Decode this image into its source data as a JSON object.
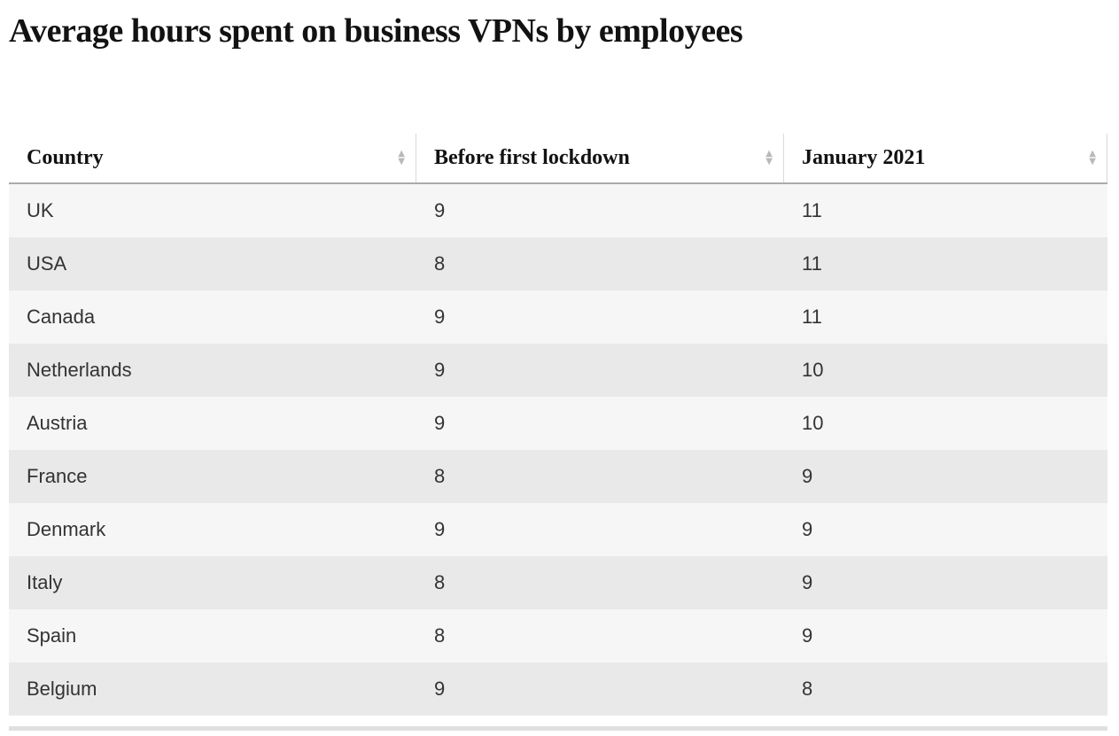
{
  "page": {
    "title": "Average hours spent on business VPNs by employees"
  },
  "table": {
    "columns": [
      {
        "label": "Country",
        "sortable": true
      },
      {
        "label": "Before first lockdown",
        "sortable": true
      },
      {
        "label": "January 2021",
        "sortable": true
      }
    ],
    "rows": [
      {
        "country": "UK",
        "before": "9",
        "january": "11"
      },
      {
        "country": "USA",
        "before": "8",
        "january": "11"
      },
      {
        "country": "Canada",
        "before": "9",
        "january": "11"
      },
      {
        "country": "Netherlands",
        "before": "9",
        "january": "10"
      },
      {
        "country": "Austria",
        "before": "9",
        "january": "10"
      },
      {
        "country": "France",
        "before": "8",
        "january": "9"
      },
      {
        "country": "Denmark",
        "before": "9",
        "january": "9"
      },
      {
        "country": "Italy",
        "before": "8",
        "january": "9"
      },
      {
        "country": "Spain",
        "before": "8",
        "january": "9"
      },
      {
        "country": "Belgium",
        "before": "9",
        "january": "8"
      }
    ]
  },
  "icons": {
    "sort_up": "▲",
    "sort_down": "▼"
  },
  "colors": {
    "title_text": "#121212",
    "header_text": "#121212",
    "body_text": "#333333",
    "row_odd": "#f6f6f6",
    "row_even": "#e9e9e9",
    "header_border": "#ababab",
    "column_divider": "#d9d9d9",
    "sort_arrow": "#b9b9b9",
    "bottom_rule": "#e0e0e0"
  },
  "chart_data": {
    "type": "table",
    "title": "Average hours spent on business VPNs by employees",
    "columns": [
      "Country",
      "Before first lockdown",
      "January 2021"
    ],
    "rows": [
      [
        "UK",
        9,
        11
      ],
      [
        "USA",
        8,
        11
      ],
      [
        "Canada",
        9,
        11
      ],
      [
        "Netherlands",
        9,
        10
      ],
      [
        "Austria",
        9,
        10
      ],
      [
        "France",
        8,
        9
      ],
      [
        "Denmark",
        9,
        9
      ],
      [
        "Italy",
        8,
        9
      ],
      [
        "Spain",
        8,
        9
      ],
      [
        "Belgium",
        9,
        8
      ]
    ],
    "layout": {
      "striped_rows": true,
      "sortable_columns": true,
      "gridlines": "header-bottom-only"
    }
  }
}
